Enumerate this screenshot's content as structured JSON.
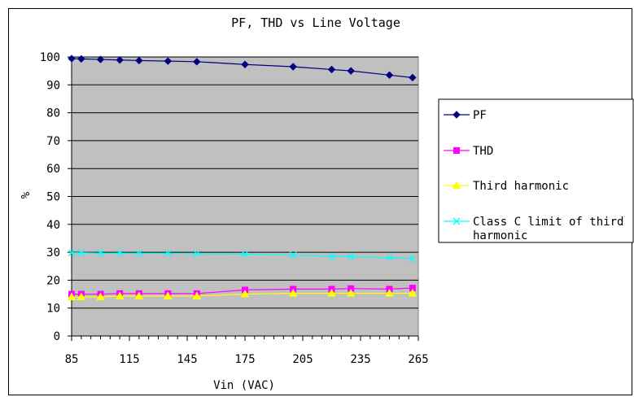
{
  "chart_data": {
    "type": "line",
    "title": "PF, THD vs Line Voltage",
    "xlabel": "Vin (VAC)",
    "ylabel": "%",
    "xlim": [
      85,
      265
    ],
    "ylim": [
      0,
      100
    ],
    "x_ticks": [
      85,
      115,
      145,
      175,
      205,
      235,
      265
    ],
    "y_ticks": [
      0,
      10,
      20,
      30,
      40,
      50,
      60,
      70,
      80,
      90,
      100
    ],
    "grid": true,
    "plot_background": "#c0c0c0",
    "legend_position": "right",
    "series": [
      {
        "name": "PF",
        "color": "#000080",
        "marker": "diamond",
        "x": [
          85,
          90,
          100,
          110,
          120,
          135,
          150,
          175,
          200,
          220,
          230,
          250,
          262
        ],
        "y": [
          99.4,
          99.3,
          99.1,
          98.9,
          98.7,
          98.5,
          98.3,
          97.3,
          96.5,
          95.5,
          95.0,
          93.5,
          92.6
        ]
      },
      {
        "name": "THD",
        "color": "#ff00ff",
        "marker": "square",
        "x": [
          85,
          90,
          100,
          110,
          120,
          135,
          150,
          175,
          200,
          220,
          230,
          250,
          262
        ],
        "y": [
          15.0,
          15.0,
          15.0,
          15.2,
          15.2,
          15.2,
          15.2,
          16.5,
          16.8,
          16.8,
          17.0,
          16.8,
          17.2
        ]
      },
      {
        "name": "Third harmonic",
        "color": "#ffff00",
        "marker": "triangle",
        "x": [
          85,
          90,
          100,
          110,
          120,
          135,
          150,
          175,
          200,
          220,
          230,
          250,
          262
        ],
        "y": [
          14.0,
          14.0,
          14.0,
          14.3,
          14.3,
          14.3,
          14.3,
          15.0,
          15.3,
          15.3,
          15.3,
          15.3,
          15.3
        ]
      },
      {
        "name": "Class C limit of third harmonic",
        "color": "#00ffff",
        "marker": "x",
        "x": [
          85,
          90,
          100,
          110,
          120,
          135,
          150,
          175,
          200,
          220,
          230,
          250,
          262
        ],
        "y": [
          29.8,
          29.8,
          29.7,
          29.7,
          29.6,
          29.6,
          29.5,
          29.3,
          29.0,
          28.6,
          28.5,
          28.0,
          27.8
        ]
      }
    ]
  }
}
